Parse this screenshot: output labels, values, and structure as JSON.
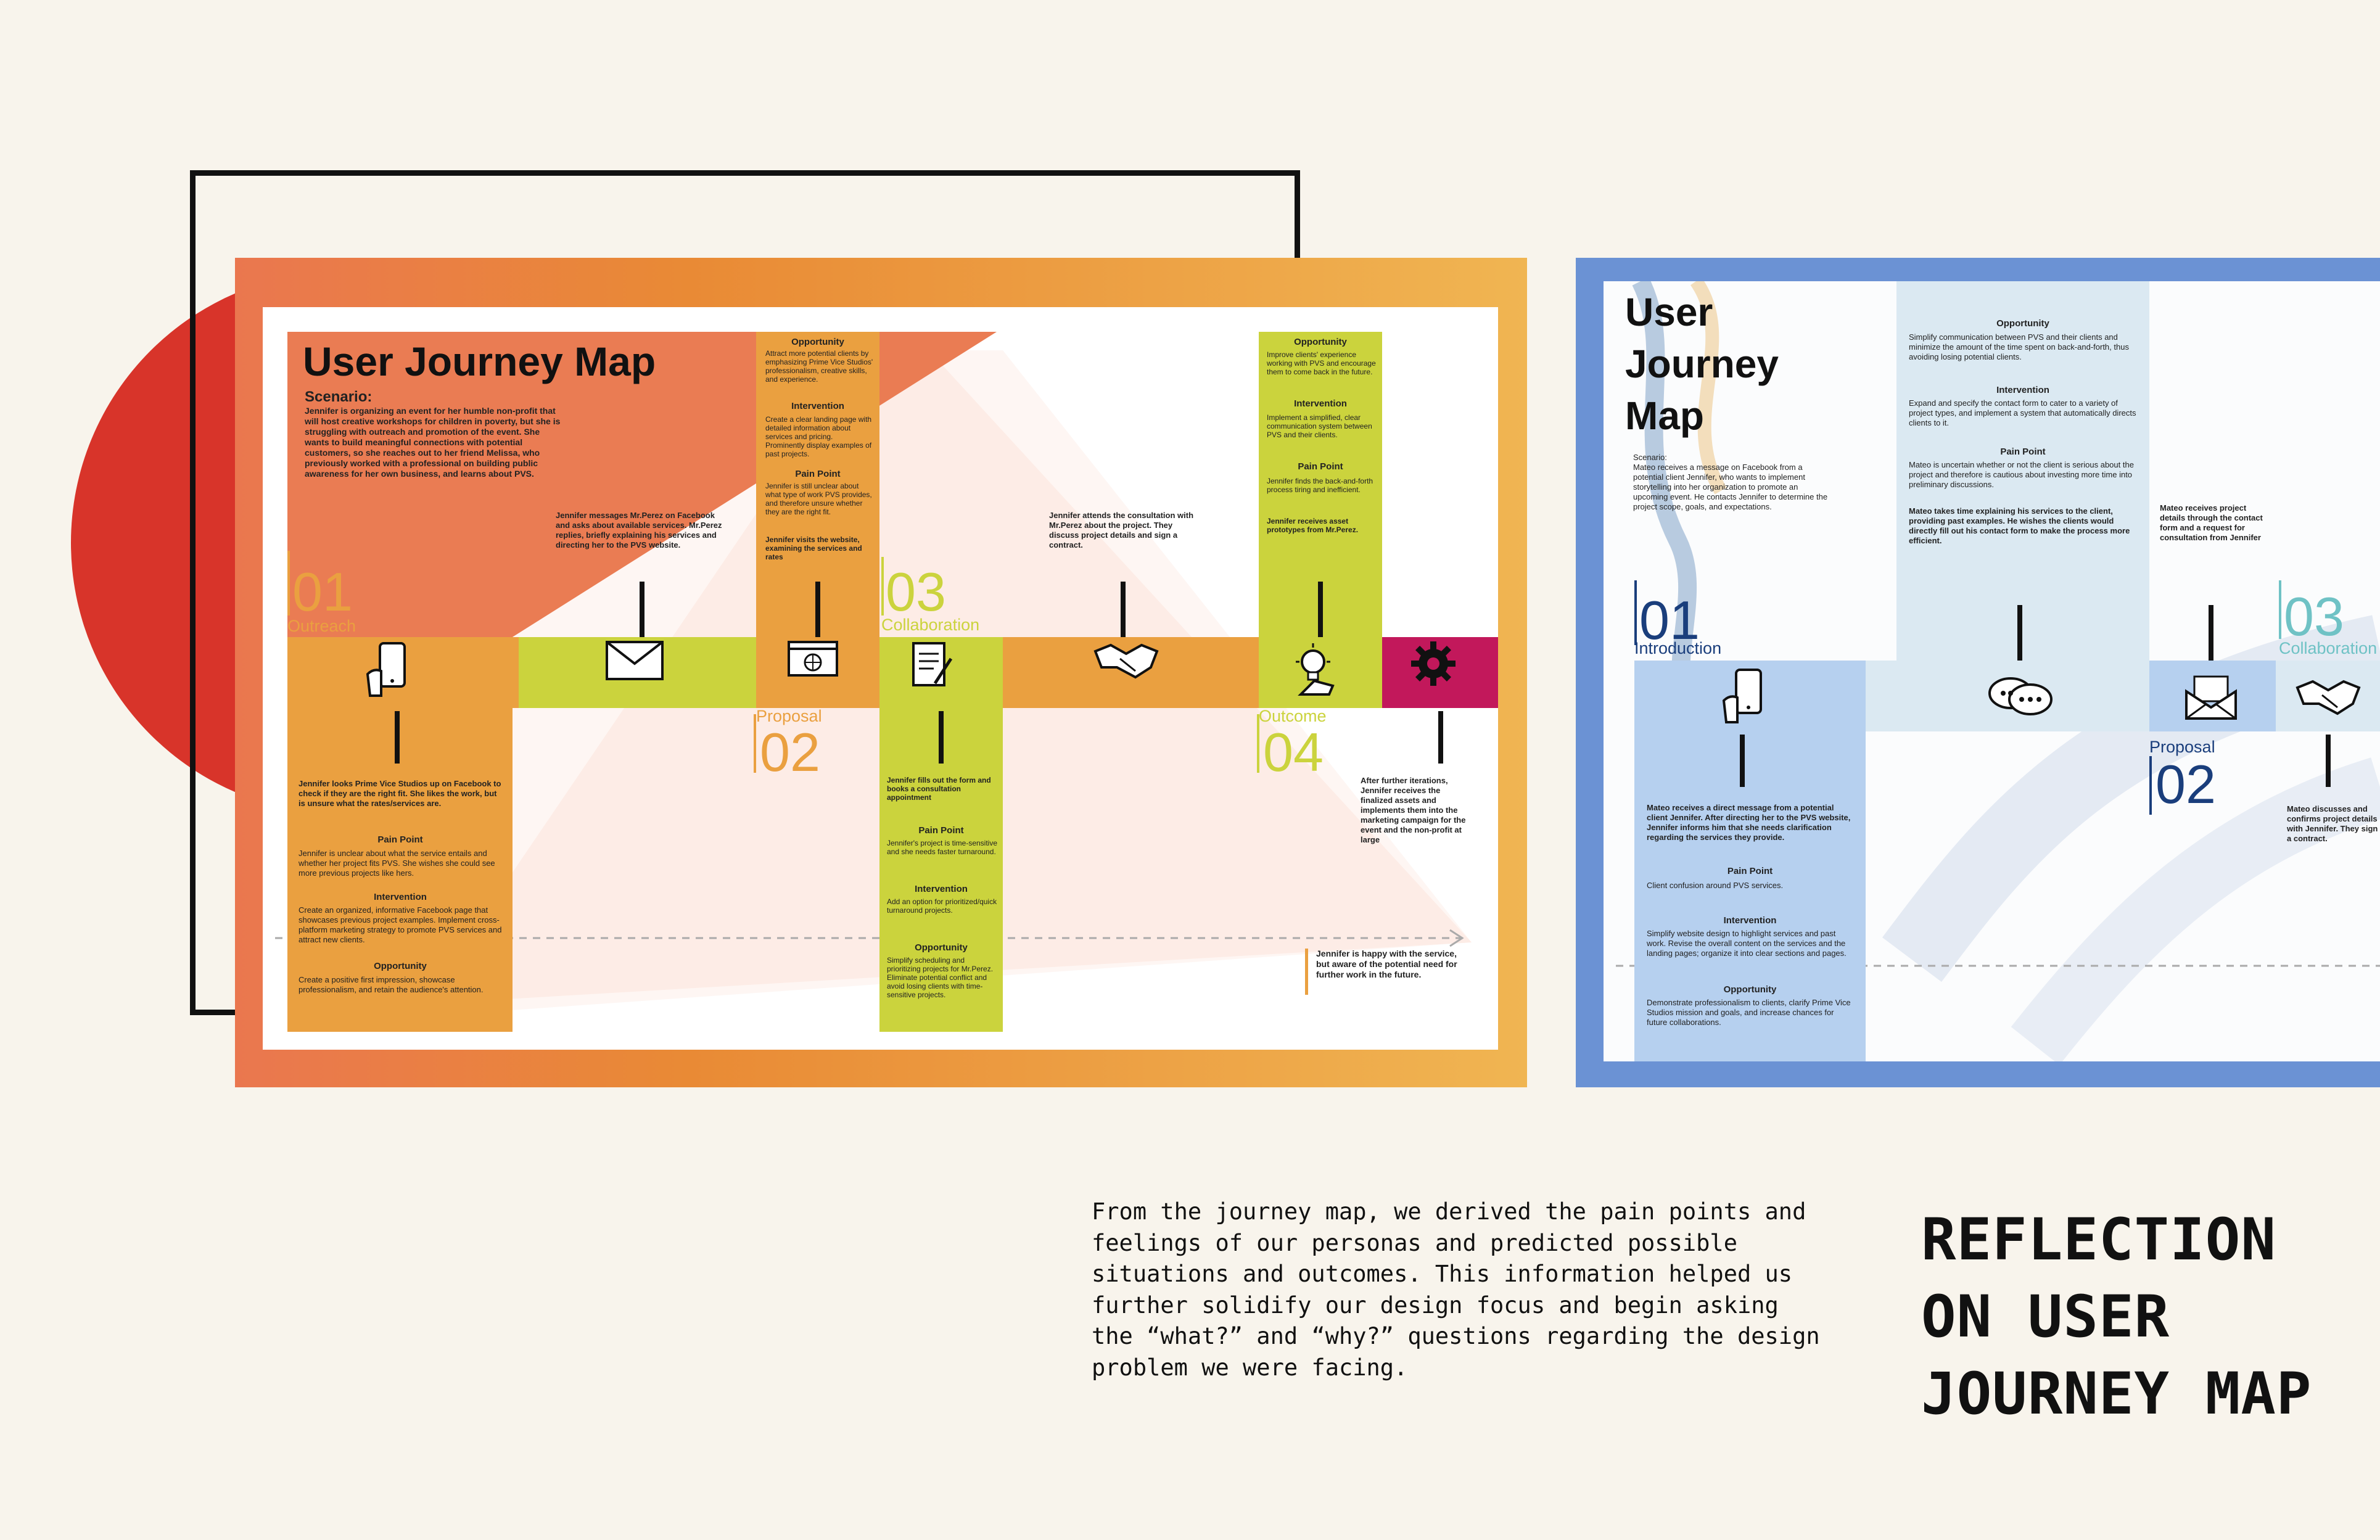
{
  "colors": {
    "background": "#f8f4ec",
    "orange": "#eaa040",
    "lime": "#cbd33d",
    "magenta": "#c2185b",
    "coral": "#e9754f",
    "blue": "#b6d0ef",
    "light_blue": "#dbe9f2",
    "navy": "#1a3e7c",
    "teal": "#6fc2c5"
  },
  "map1": {
    "title": "User Journey Map",
    "scenario_label": "Scenario:",
    "scenario_text": "Jennifer is organizing an event for her humble non-profit that will host creative workshops for children in poverty, but she is struggling with outreach and promotion of the event. She wants to build meaningful connections with potential customers, so she reaches out to her friend Melissa, who previously worked with a professional on building public awareness for her own business, and learns about PVS.",
    "stages": [
      {
        "num": "01",
        "label": "Outreach"
      },
      {
        "num": "02",
        "label": "Proposal"
      },
      {
        "num": "03",
        "label": "Collaboration"
      },
      {
        "num": "04",
        "label": "Outcome"
      }
    ],
    "icons": [
      "smartphone-icon",
      "mail-icon",
      "website-icon",
      "form-icon",
      "handshake-icon",
      "idea-icon",
      "gear-icon"
    ],
    "outreach_card": {
      "intro": "Jennifer looks Prime Vice Studios up on Facebook to check if they are the right fit. She likes the work, but is unsure what the rates/services are.",
      "pain_title": "Pain Point",
      "pain": "Jennifer is unclear about what the service entails and whether her project fits PVS. She wishes she could see more previous projects like hers.",
      "intervention_title": "Intervention",
      "intervention": "Create an organized, informative Facebook page that showcases previous project examples. Implement cross-platform marketing strategy to promote PVS services and attract new clients.",
      "opportunity_title": "Opportunity",
      "opportunity": "Create a positive first impression, showcase professionalism, and retain the audience's attention."
    },
    "messages_note": "Jennifer messages Mr.Perez on Facebook and asks about available services. Mr.Perez replies, briefly explaining his services and directing her to the PVS website.",
    "website_card": {
      "opportunity_title": "Opportunity",
      "opportunity": "Attract more potential clients by emphasizing Prime Vice Studios' professionalism, creative skills, and experience.",
      "intervention_title": "Intervention",
      "intervention": "Create a clear landing page with detailed information about services and pricing. Prominently display examples of past projects.",
      "pain_title": "Pain Point",
      "pain": "Jennifer is still unclear about what type of work PVS provides, and therefore unsure whether they are the right fit.",
      "visit": "Jennifer visits the website, examining the services and rates"
    },
    "collab_card": {
      "intro": "Jennifer fills out the form and books a consultation appointment",
      "pain_title": "Pain Point",
      "pain": "Jennifer's project is time-sensitive and she needs faster turnaround.",
      "intervention_title": "Intervention",
      "intervention": "Add an option for prioritized/quick turnaround projects.",
      "opportunity_title": "Opportunity",
      "opportunity": "Simplify scheduling and prioritizing projects for Mr.Perez. Eliminate potential conflict and avoid losing clients with time-sensitive projects."
    },
    "consult_note": "Jennifer attends the consultation with Mr.Perez about the project. They discuss project details and sign a contract.",
    "outcome_card": {
      "opportunity_title": "Opportunity",
      "opportunity": "Improve clients' experience working with PVS and encourage them to come back in the future.",
      "intervention_title": "Intervention",
      "intervention": "Implement a simplified, clear communication system between PVS and their clients.",
      "pain_title": "Pain Point",
      "pain": "Jennifer finds the back-and-forth process tiring and inefficient.",
      "receive": "Jennifer receives asset prototypes from Mr.Perez."
    },
    "iteration_note": "After further iterations, Jennifer receives the finalized assets and implements them into the marketing campaign for the event and the non-profit at large",
    "final_note": "Jennifer is happy with the service, but aware of the potential need for further work in the future."
  },
  "map2": {
    "title_line1": "User",
    "title_line2": "Journey",
    "title_line3": "Map",
    "scenario_label": "Scenario:",
    "scenario_text": "Mateo receives a message on Facebook from a potential client Jennifer, who wants to implement storytelling into her organization to promote an upcoming event. He contacts Jennifer to determine the project scope, goals, and expectations.",
    "stages": [
      {
        "num": "01",
        "label": "Introduction"
      },
      {
        "num": "02",
        "label": "Proposal"
      },
      {
        "num": "03",
        "label": "Collaboration"
      }
    ],
    "icons": [
      "smartphone-icon",
      "chat-icon",
      "envelope-open-icon",
      "handshake-icon"
    ],
    "intro_card": {
      "intro": "Mateo receives a direct message from a potential client Jennifer. After directing her to the PVS website, Jennifer informs him that she needs clarification regarding the services they provide.",
      "pain_title": "Pain Point",
      "pain": "Client confusion around PVS services.",
      "intervention_title": "Intervention",
      "intervention": "Simplify website design to highlight services and past work. Revise the overall content on the services and the landing pages; organize it into clear sections and pages.",
      "opportunity_title": "Opportunity",
      "opportunity": "Demonstrate professionalism to clients, clarify Prime Vice Studios mission and goals, and increase chances for future collaborations."
    },
    "proposal_card": {
      "opportunity_title": "Opportunity",
      "opportunity": "Simplify communication between PVS and their clients and minimize the amount of the time spent on back-and-forth, thus avoiding losing potential clients.",
      "intervention_title": "Intervention",
      "intervention": "Expand and specify the contact form to cater to a variety of project types, and implement a system that automatically directs clients to it.",
      "pain_title": "Pain Point",
      "pain": "Mateo is uncertain whether or not the client is serious about the project and therefore is cautious about investing more time into preliminary discussions.",
      "explain": "Mateo takes time explaining his services to the client, providing past examples. He wishes the clients would directly fill out his contact form to make the process more efficient."
    },
    "request_note": "Mateo receives project details through the contact form and a request for consultation from Jennifer",
    "contract_note": "Mateo discusses and confirms project details with Jennifer. They sign a contract."
  },
  "reflection": {
    "body": "From the journey map, we derived the pain points and\nfeelings of our personas and predicted possible\nsituations and outcomes. This information helped us\nfurther solidify our design focus and begin asking\nthe “what?” and “why?” questions regarding the design\nproblem we were facing.",
    "heading_line1": "REFLECTION",
    "heading_line2": "ON USER",
    "heading_line3": "JOURNEY MAP"
  }
}
